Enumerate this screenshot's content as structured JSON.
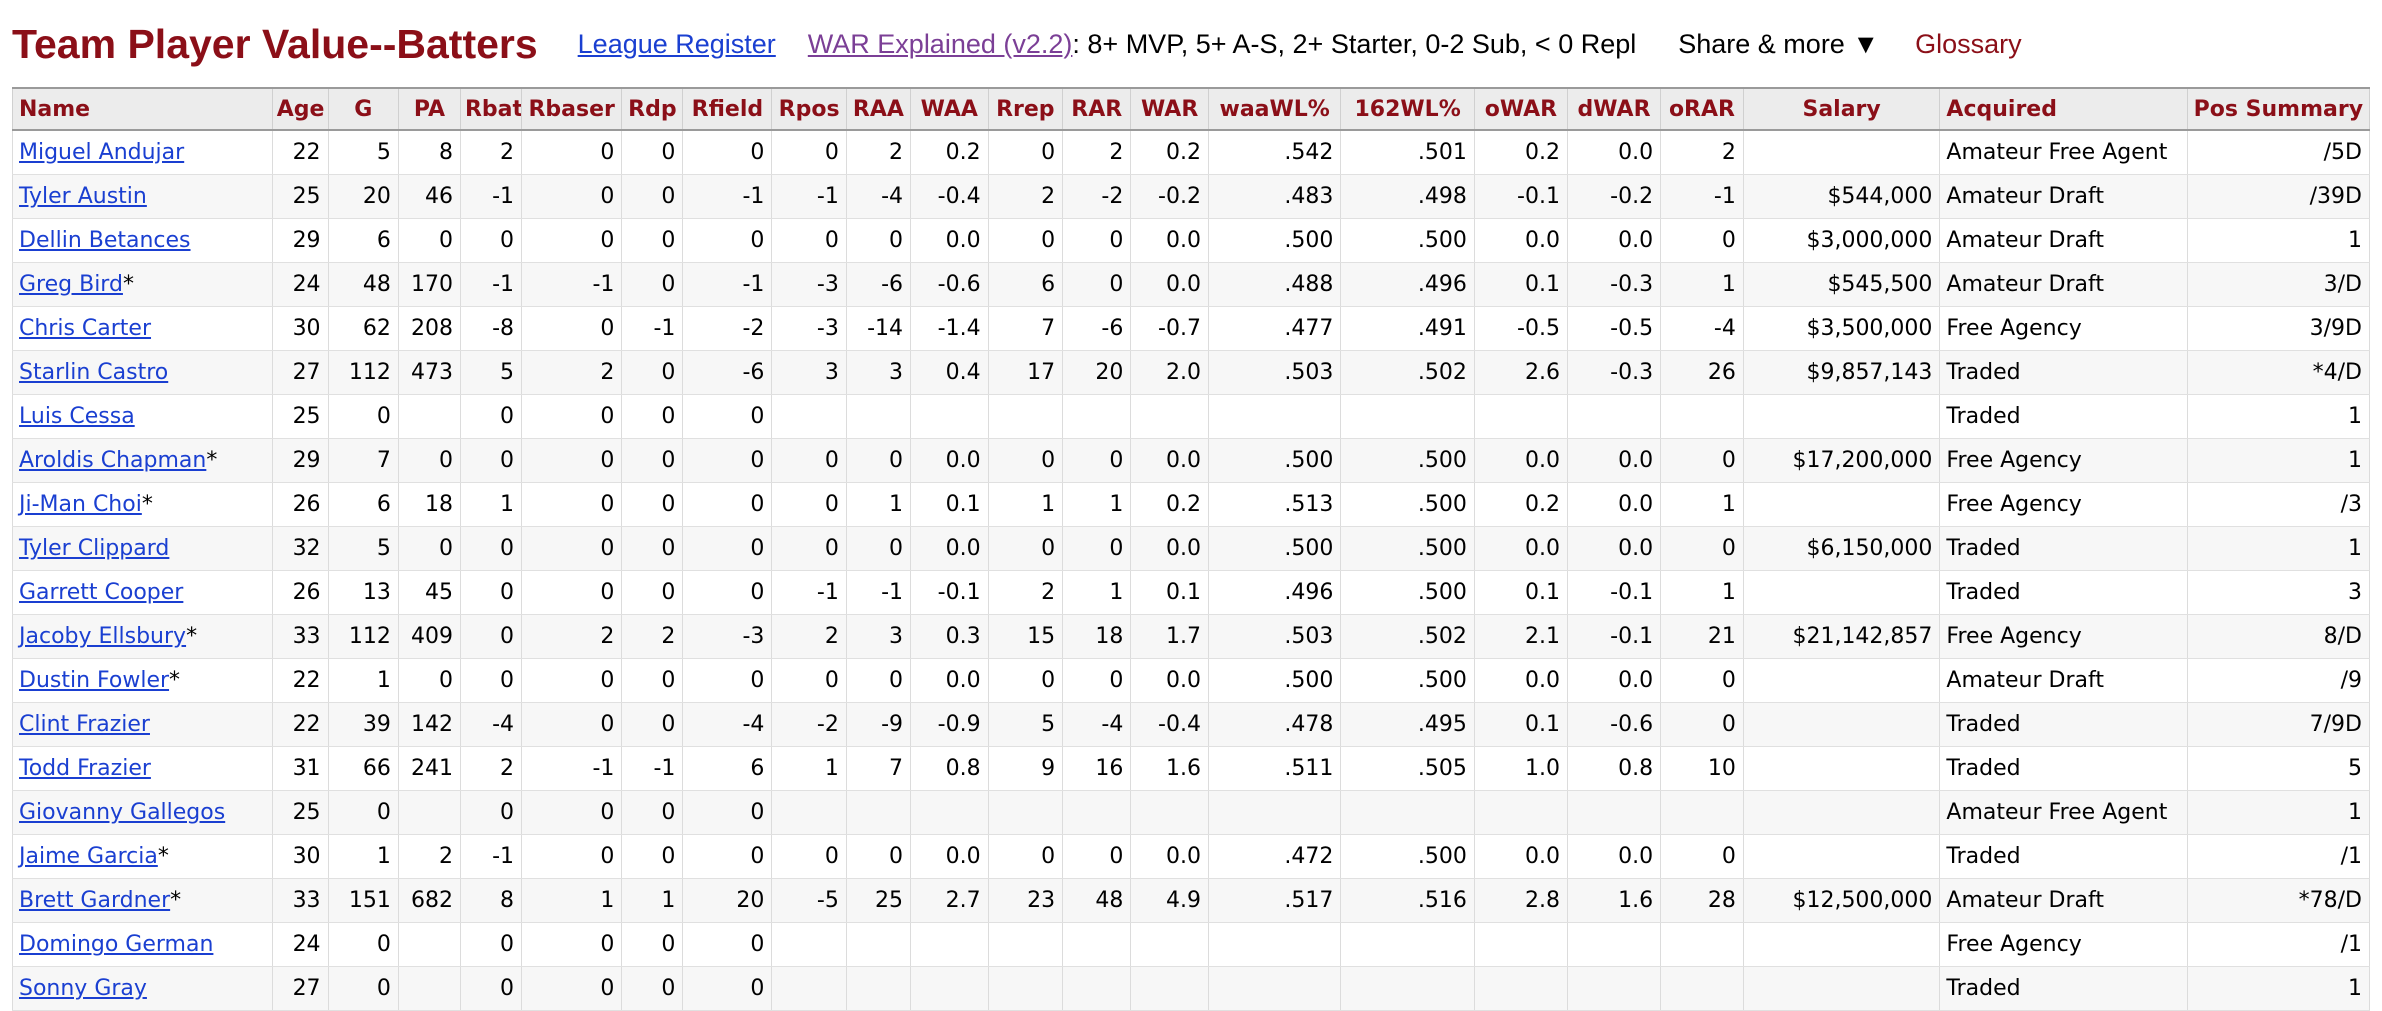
{
  "header": {
    "title": "Team Player Value--Batters",
    "link_league_register": "League Register",
    "link_war_explained": "WAR Explained (v2.2)",
    "war_note": ": 8+ MVP, 5+ A-S, 2+ Starter, 0-2 Sub, < 0 Repl",
    "share_label": "Share & more ▼",
    "glossary_label": "Glossary"
  },
  "table": {
    "columns": [
      "Name",
      "Age",
      "G",
      "PA",
      "Rbat",
      "Rbaser",
      "Rdp",
      "Rfield",
      "Rpos",
      "RAA",
      "WAA",
      "Rrep",
      "RAR",
      "WAR",
      "waaWL%",
      "162WL%",
      "oWAR",
      "dWAR",
      "oRAR",
      "Salary",
      "Acquired",
      "Pos Summary"
    ],
    "rows": [
      {
        "name": "Miguel Andujar",
        "mark": "",
        "cells": [
          "22",
          "5",
          "8",
          "2",
          "0",
          "0",
          "0",
          "0",
          "2",
          "0.2",
          "0",
          "2",
          "0.2",
          ".542",
          ".501",
          "0.2",
          "0.0",
          "2",
          "",
          "Amateur Free Agent",
          "/5D"
        ]
      },
      {
        "name": "Tyler Austin",
        "mark": "",
        "cells": [
          "25",
          "20",
          "46",
          "-1",
          "0",
          "0",
          "-1",
          "-1",
          "-4",
          "-0.4",
          "2",
          "-2",
          "-0.2",
          ".483",
          ".498",
          "-0.1",
          "-0.2",
          "-1",
          "$544,000",
          "Amateur Draft",
          "/39D"
        ]
      },
      {
        "name": "Dellin Betances",
        "mark": "",
        "cells": [
          "29",
          "6",
          "0",
          "0",
          "0",
          "0",
          "0",
          "0",
          "0",
          "0.0",
          "0",
          "0",
          "0.0",
          ".500",
          ".500",
          "0.0",
          "0.0",
          "0",
          "$3,000,000",
          "Amateur Draft",
          "1"
        ]
      },
      {
        "name": "Greg Bird",
        "mark": "*",
        "cells": [
          "24",
          "48",
          "170",
          "-1",
          "-1",
          "0",
          "-1",
          "-3",
          "-6",
          "-0.6",
          "6",
          "0",
          "0.0",
          ".488",
          ".496",
          "0.1",
          "-0.3",
          "1",
          "$545,500",
          "Amateur Draft",
          "3/D"
        ]
      },
      {
        "name": "Chris Carter",
        "mark": "",
        "cells": [
          "30",
          "62",
          "208",
          "-8",
          "0",
          "-1",
          "-2",
          "-3",
          "-14",
          "-1.4",
          "7",
          "-6",
          "-0.7",
          ".477",
          ".491",
          "-0.5",
          "-0.5",
          "-4",
          "$3,500,000",
          "Free Agency",
          "3/9D"
        ]
      },
      {
        "name": "Starlin Castro",
        "mark": "",
        "cells": [
          "27",
          "112",
          "473",
          "5",
          "2",
          "0",
          "-6",
          "3",
          "3",
          "0.4",
          "17",
          "20",
          "2.0",
          ".503",
          ".502",
          "2.6",
          "-0.3",
          "26",
          "$9,857,143",
          "Traded",
          "*4/D"
        ]
      },
      {
        "name": "Luis Cessa",
        "mark": "",
        "cells": [
          "25",
          "0",
          "",
          "0",
          "0",
          "0",
          "0",
          "",
          "",
          "",
          "",
          "",
          "",
          "",
          "",
          "",
          "",
          "",
          "",
          "Traded",
          "1"
        ]
      },
      {
        "name": "Aroldis Chapman",
        "mark": "*",
        "cells": [
          "29",
          "7",
          "0",
          "0",
          "0",
          "0",
          "0",
          "0",
          "0",
          "0.0",
          "0",
          "0",
          "0.0",
          ".500",
          ".500",
          "0.0",
          "0.0",
          "0",
          "$17,200,000",
          "Free Agency",
          "1"
        ]
      },
      {
        "name": "Ji-Man Choi",
        "mark": "*",
        "cells": [
          "26",
          "6",
          "18",
          "1",
          "0",
          "0",
          "0",
          "0",
          "1",
          "0.1",
          "1",
          "1",
          "0.2",
          ".513",
          ".500",
          "0.2",
          "0.0",
          "1",
          "",
          "Free Agency",
          "/3"
        ]
      },
      {
        "name": "Tyler Clippard",
        "mark": "",
        "cells": [
          "32",
          "5",
          "0",
          "0",
          "0",
          "0",
          "0",
          "0",
          "0",
          "0.0",
          "0",
          "0",
          "0.0",
          ".500",
          ".500",
          "0.0",
          "0.0",
          "0",
          "$6,150,000",
          "Traded",
          "1"
        ]
      },
      {
        "name": "Garrett Cooper",
        "mark": "",
        "cells": [
          "26",
          "13",
          "45",
          "0",
          "0",
          "0",
          "0",
          "-1",
          "-1",
          "-0.1",
          "2",
          "1",
          "0.1",
          ".496",
          ".500",
          "0.1",
          "-0.1",
          "1",
          "",
          "Traded",
          "3"
        ]
      },
      {
        "name": "Jacoby Ellsbury",
        "mark": "*",
        "cells": [
          "33",
          "112",
          "409",
          "0",
          "2",
          "2",
          "-3",
          "2",
          "3",
          "0.3",
          "15",
          "18",
          "1.7",
          ".503",
          ".502",
          "2.1",
          "-0.1",
          "21",
          "$21,142,857",
          "Free Agency",
          "8/D"
        ]
      },
      {
        "name": "Dustin Fowler",
        "mark": "*",
        "cells": [
          "22",
          "1",
          "0",
          "0",
          "0",
          "0",
          "0",
          "0",
          "0",
          "0.0",
          "0",
          "0",
          "0.0",
          ".500",
          ".500",
          "0.0",
          "0.0",
          "0",
          "",
          "Amateur Draft",
          "/9"
        ]
      },
      {
        "name": "Clint Frazier",
        "mark": "",
        "cells": [
          "22",
          "39",
          "142",
          "-4",
          "0",
          "0",
          "-4",
          "-2",
          "-9",
          "-0.9",
          "5",
          "-4",
          "-0.4",
          ".478",
          ".495",
          "0.1",
          "-0.6",
          "0",
          "",
          "Traded",
          "7/9D"
        ]
      },
      {
        "name": "Todd Frazier",
        "mark": "",
        "cells": [
          "31",
          "66",
          "241",
          "2",
          "-1",
          "-1",
          "6",
          "1",
          "7",
          "0.8",
          "9",
          "16",
          "1.6",
          ".511",
          ".505",
          "1.0",
          "0.8",
          "10",
          "",
          "Traded",
          "5"
        ]
      },
      {
        "name": "Giovanny Gallegos",
        "mark": "",
        "cells": [
          "25",
          "0",
          "",
          "0",
          "0",
          "0",
          "0",
          "",
          "",
          "",
          "",
          "",
          "",
          "",
          "",
          "",
          "",
          "",
          "",
          "Amateur Free Agent",
          "1"
        ]
      },
      {
        "name": "Jaime Garcia",
        "mark": "*",
        "cells": [
          "30",
          "1",
          "2",
          "-1",
          "0",
          "0",
          "0",
          "0",
          "0",
          "0.0",
          "0",
          "0",
          "0.0",
          ".472",
          ".500",
          "0.0",
          "0.0",
          "0",
          "",
          "Traded",
          "/1"
        ]
      },
      {
        "name": "Brett Gardner",
        "mark": "*",
        "cells": [
          "33",
          "151",
          "682",
          "8",
          "1",
          "1",
          "20",
          "-5",
          "25",
          "2.7",
          "23",
          "48",
          "4.9",
          ".517",
          ".516",
          "2.8",
          "1.6",
          "28",
          "$12,500,000",
          "Amateur Draft",
          "*78/D"
        ]
      },
      {
        "name": "Domingo German",
        "mark": "",
        "cells": [
          "24",
          "0",
          "",
          "0",
          "0",
          "0",
          "0",
          "",
          "",
          "",
          "",
          "",
          "",
          "",
          "",
          "",
          "",
          "",
          "",
          "Free Agency",
          "/1"
        ]
      },
      {
        "name": "Sonny Gray",
        "mark": "",
        "cells": [
          "27",
          "0",
          "",
          "0",
          "0",
          "0",
          "0",
          "",
          "",
          "",
          "",
          "",
          "",
          "",
          "",
          "",
          "",
          "",
          "",
          "Traded",
          "1"
        ]
      }
    ]
  }
}
